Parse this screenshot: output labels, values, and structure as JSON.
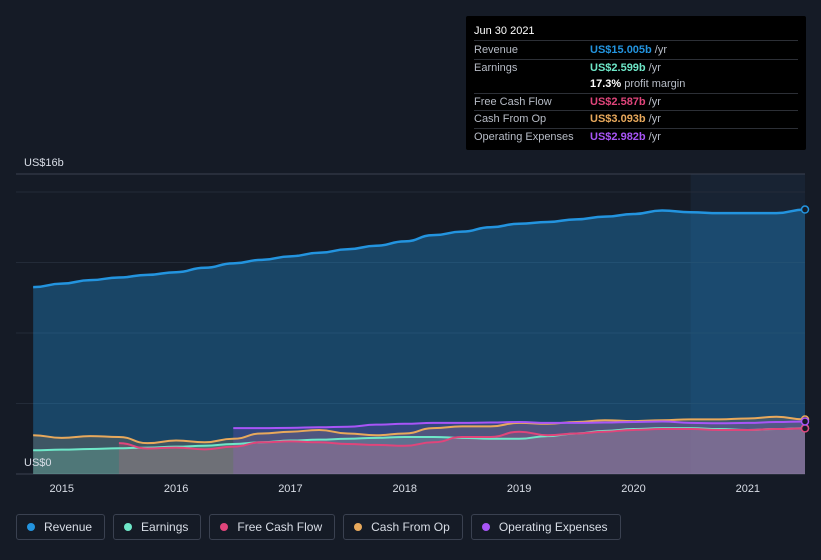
{
  "tooltip": {
    "date": "Jun 30 2021",
    "rows": [
      {
        "label": "Revenue",
        "value": "US$15.005b",
        "unit": "/yr",
        "color": "#2394df"
      },
      {
        "label": "Earnings",
        "value": "US$2.599b",
        "unit": "/yr",
        "color": "#6ee7c8"
      },
      {
        "label": "",
        "value": "17.3%",
        "unit": "profit margin",
        "color": "#ffffff"
      },
      {
        "label": "Free Cash Flow",
        "value": "US$2.587b",
        "unit": "/yr",
        "color": "#e0457b"
      },
      {
        "label": "Cash From Op",
        "value": "US$3.093b",
        "unit": "/yr",
        "color": "#e8a95c"
      },
      {
        "label": "Operating Expenses",
        "value": "US$2.982b",
        "unit": "/yr",
        "color": "#a855f7"
      }
    ]
  },
  "legend": [
    {
      "label": "Revenue",
      "color": "#2394df"
    },
    {
      "label": "Earnings",
      "color": "#6ee7c8"
    },
    {
      "label": "Free Cash Flow",
      "color": "#e0457b"
    },
    {
      "label": "Cash From Op",
      "color": "#e8a95c"
    },
    {
      "label": "Operating Expenses",
      "color": "#a855f7"
    }
  ],
  "chart_data": {
    "type": "area",
    "y_top_label": "US$16b",
    "y_bottom_label": "US$0",
    "ylim": [
      0,
      16
    ],
    "xlim": [
      2014.6,
      2021.5
    ],
    "x_ticks": [
      2015,
      2016,
      2017,
      2018,
      2019,
      2020,
      2021
    ],
    "x_tick_labels": [
      "2015",
      "2016",
      "2017",
      "2018",
      "2019",
      "2020",
      "2021"
    ],
    "grid": true,
    "highlight_start": 2020.5,
    "series": [
      {
        "name": "Revenue",
        "color": "#2394df",
        "x": [
          2014.75,
          2015.0,
          2015.25,
          2015.5,
          2015.75,
          2016.0,
          2016.25,
          2016.5,
          2016.75,
          2017.0,
          2017.25,
          2017.5,
          2017.75,
          2018.0,
          2018.25,
          2018.5,
          2018.75,
          2019.0,
          2019.25,
          2019.5,
          2019.75,
          2020.0,
          2020.25,
          2020.5,
          2020.75,
          2021.0,
          2021.25,
          2021.5
        ],
        "values": [
          10.6,
          10.8,
          11.0,
          11.15,
          11.3,
          11.45,
          11.7,
          11.95,
          12.15,
          12.35,
          12.55,
          12.75,
          12.95,
          13.2,
          13.55,
          13.75,
          14.0,
          14.2,
          14.3,
          14.45,
          14.6,
          14.75,
          14.95,
          14.85,
          14.8,
          14.8,
          14.8,
          15.005
        ]
      },
      {
        "name": "Earnings",
        "color": "#6ee7c8",
        "x": [
          2014.75,
          2015.0,
          2015.25,
          2015.5,
          2015.75,
          2016.0,
          2016.25,
          2016.5,
          2016.75,
          2017.0,
          2017.25,
          2017.5,
          2017.75,
          2018.0,
          2018.25,
          2018.5,
          2018.75,
          2019.0,
          2019.25,
          2019.5,
          2019.75,
          2020.0,
          2020.25,
          2020.5,
          2020.75,
          2021.0,
          2021.25,
          2021.5
        ],
        "values": [
          1.35,
          1.38,
          1.42,
          1.46,
          1.5,
          1.55,
          1.6,
          1.7,
          1.8,
          1.9,
          1.95,
          2.0,
          2.05,
          2.1,
          2.1,
          2.05,
          2.0,
          2.0,
          2.15,
          2.3,
          2.45,
          2.55,
          2.6,
          2.6,
          2.55,
          2.5,
          2.55,
          2.599
        ]
      },
      {
        "name": "Free Cash Flow",
        "color": "#e0457b",
        "x": [
          2015.5,
          2015.75,
          2016.0,
          2016.25,
          2016.5,
          2016.75,
          2017.0,
          2017.25,
          2017.5,
          2017.75,
          2018.0,
          2018.25,
          2018.5,
          2018.75,
          2019.0,
          2019.25,
          2019.5,
          2019.75,
          2020.0,
          2020.25,
          2020.5,
          2020.75,
          2021.0,
          2021.25,
          2021.5
        ],
        "values": [
          1.75,
          1.45,
          1.5,
          1.4,
          1.55,
          1.8,
          1.85,
          1.8,
          1.7,
          1.65,
          1.6,
          1.8,
          2.1,
          2.1,
          2.4,
          2.2,
          2.3,
          2.4,
          2.5,
          2.55,
          2.55,
          2.5,
          2.5,
          2.55,
          2.587
        ]
      },
      {
        "name": "Cash From Op",
        "color": "#e8a95c",
        "x": [
          2014.75,
          2015.0,
          2015.25,
          2015.5,
          2015.75,
          2016.0,
          2016.25,
          2016.5,
          2016.75,
          2017.0,
          2017.25,
          2017.5,
          2017.75,
          2018.0,
          2018.25,
          2018.5,
          2018.75,
          2019.0,
          2019.25,
          2019.5,
          2019.75,
          2020.0,
          2020.25,
          2020.5,
          2020.75,
          2021.0,
          2021.25,
          2021.5
        ],
        "values": [
          2.2,
          2.05,
          2.15,
          2.1,
          1.75,
          1.9,
          1.8,
          2.0,
          2.3,
          2.4,
          2.5,
          2.3,
          2.2,
          2.3,
          2.6,
          2.7,
          2.7,
          2.9,
          2.85,
          2.95,
          3.05,
          3.0,
          3.05,
          3.1,
          3.1,
          3.15,
          3.25,
          3.093
        ]
      },
      {
        "name": "Operating Expenses",
        "color": "#a855f7",
        "x": [
          2016.5,
          2016.75,
          2017.0,
          2017.25,
          2017.5,
          2017.75,
          2018.0,
          2018.25,
          2018.5,
          2018.75,
          2019.0,
          2019.25,
          2019.5,
          2019.75,
          2020.0,
          2020.25,
          2020.5,
          2020.75,
          2021.0,
          2021.25,
          2021.5
        ],
        "values": [
          2.6,
          2.6,
          2.62,
          2.65,
          2.68,
          2.8,
          2.85,
          2.9,
          2.9,
          2.92,
          2.95,
          2.9,
          2.9,
          2.92,
          2.95,
          2.98,
          2.9,
          2.88,
          2.9,
          2.95,
          2.982
        ]
      }
    ]
  }
}
